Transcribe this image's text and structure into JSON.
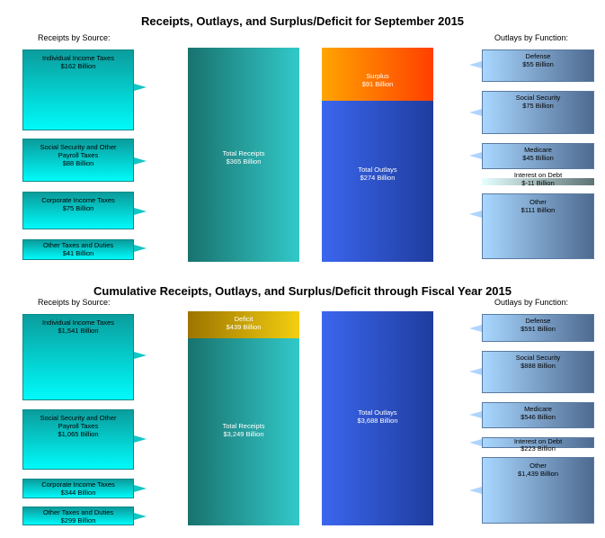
{
  "chart_data": [
    {
      "type": "bar",
      "title": "Receipts, Outlays, and Surplus/Deficit for September 2015",
      "receipts_heading": "Receipts by Source:",
      "outlays_heading": "Outlays by Function:",
      "receipts": [
        {
          "name": "Individual Income Taxes",
          "label": "$162 Billion",
          "value": 162
        },
        {
          "name": "Social Security and Other Payroll Taxes",
          "label": "$88 Billion",
          "value": 88
        },
        {
          "name": "Corporate Income Taxes",
          "label": "$75 Billion",
          "value": 75
        },
        {
          "name": "Other Taxes and Duties",
          "label": "$41 Billion",
          "value": 41
        }
      ],
      "total_receipts": {
        "name": "Total Receipts",
        "label": "$365 Billion",
        "value": 365
      },
      "balance": {
        "name": "Surplus",
        "label": "$91 Billion",
        "value": 91
      },
      "total_outlays": {
        "name": "Total Outlays",
        "label": "$274 Billion",
        "value": 274
      },
      "outlays": [
        {
          "name": "Defense",
          "label": "$55 Billion",
          "value": 55
        },
        {
          "name": "Social Security",
          "label": "$75 Billion",
          "value": 75
        },
        {
          "name": "Medicare",
          "label": "$45 Billion",
          "value": 45
        },
        {
          "name": "Interest on Debt",
          "label": "$-11 Billion",
          "value": -11
        },
        {
          "name": "Other",
          "label": "$111 Billion",
          "value": 111
        }
      ]
    },
    {
      "type": "bar",
      "title": "Cumulative Receipts, Outlays, and Surplus/Deficit through Fiscal Year 2015",
      "receipts_heading": "Receipts by Source:",
      "outlays_heading": "Outlays by Function:",
      "receipts": [
        {
          "name": "Individual Income Taxes",
          "label": "$1,541 Billion",
          "value": 1541
        },
        {
          "name": "Social Security and Other Payroll Taxes",
          "label": "$1,065 Billion",
          "value": 1065
        },
        {
          "name": "Corporate Income Taxes",
          "label": "$344 Billion",
          "value": 344
        },
        {
          "name": "Other Taxes and Duties",
          "label": "$299 Billion",
          "value": 299
        }
      ],
      "total_receipts": {
        "name": "Total Receipts",
        "label": "$3,249 Billion",
        "value": 3249
      },
      "balance": {
        "name": "Deficit",
        "label": "$439 Billion",
        "value": 439
      },
      "total_outlays": {
        "name": "Total Outlays",
        "label": "$3,688 Billion",
        "value": 3688
      },
      "outlays": [
        {
          "name": "Defense",
          "label": "$591 Billion",
          "value": 591
        },
        {
          "name": "Social Security",
          "label": "$888 Billion",
          "value": 888
        },
        {
          "name": "Medicare",
          "label": "$546 Billion",
          "value": 546
        },
        {
          "name": "Interest on Debt",
          "label": "$223 Billion",
          "value": 223
        },
        {
          "name": "Other",
          "label": "$1,439 Billion",
          "value": 1439
        }
      ]
    }
  ]
}
